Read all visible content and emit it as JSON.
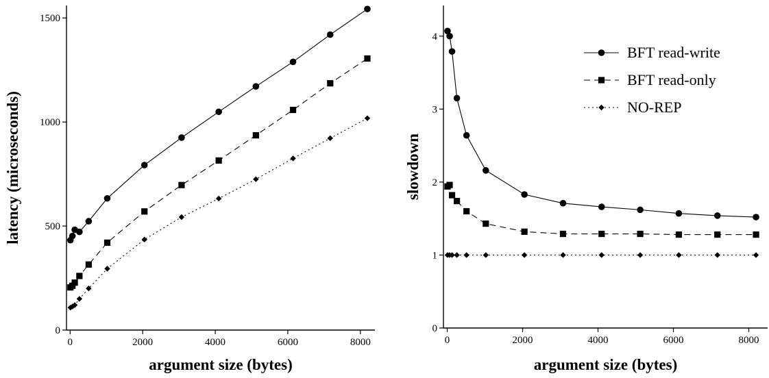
{
  "chart_data": [
    {
      "type": "line",
      "xlabel": "argument size (bytes)",
      "ylabel": "latency (microseconds)",
      "xlim": [
        -100,
        8400
      ],
      "ylim": [
        0,
        1560
      ],
      "xticks": [
        0,
        2000,
        4000,
        6000,
        8000
      ],
      "yticks": [
        0,
        500,
        1000,
        1500
      ],
      "grid": false,
      "x": [
        8,
        64,
        128,
        256,
        512,
        1024,
        2048,
        3072,
        4096,
        5120,
        6144,
        7168,
        8192
      ],
      "series": [
        {
          "name": "BFT read-write",
          "marker": "circle",
          "dash": "solid",
          "values": [
            432,
            452,
            482,
            472,
            523,
            633,
            793,
            925,
            1049,
            1171,
            1289,
            1420,
            1543
          ]
        },
        {
          "name": "BFT read-only",
          "marker": "square",
          "dash": "dashed",
          "values": [
            205,
            213,
            228,
            260,
            315,
            420,
            570,
            697,
            815,
            936,
            1058,
            1186,
            1305
          ]
        },
        {
          "name": "NO-REP",
          "marker": "diamond",
          "dash": "dotted",
          "values": [
            108,
            113,
            120,
            150,
            200,
            295,
            435,
            543,
            632,
            725,
            825,
            922,
            1018
          ]
        }
      ]
    },
    {
      "type": "line",
      "xlabel": "argument size (bytes)",
      "ylabel": "slowdown",
      "xlim": [
        -100,
        8500
      ],
      "ylim": [
        0,
        4.42
      ],
      "xticks": [
        0,
        2000,
        4000,
        6000,
        8000
      ],
      "yticks": [
        0,
        1,
        2,
        3,
        4
      ],
      "grid": false,
      "legend_position": "top-right",
      "x": [
        8,
        64,
        128,
        256,
        512,
        1024,
        2048,
        3072,
        4096,
        5120,
        6144,
        7168,
        8192
      ],
      "series": [
        {
          "name": "BFT read-write",
          "marker": "circle",
          "dash": "solid",
          "values": [
            4.07,
            4.0,
            3.79,
            3.15,
            2.64,
            2.16,
            1.83,
            1.71,
            1.66,
            1.62,
            1.57,
            1.54,
            1.52
          ]
        },
        {
          "name": "BFT read-only",
          "marker": "square",
          "dash": "dashed",
          "values": [
            1.94,
            1.96,
            1.82,
            1.74,
            1.6,
            1.43,
            1.32,
            1.29,
            1.29,
            1.29,
            1.28,
            1.28,
            1.28
          ]
        },
        {
          "name": "NO-REP",
          "marker": "diamond",
          "dash": "dotted",
          "values": [
            1,
            1,
            1,
            1,
            1,
            1,
            1,
            1,
            1,
            1,
            1,
            1,
            1
          ]
        }
      ]
    }
  ]
}
